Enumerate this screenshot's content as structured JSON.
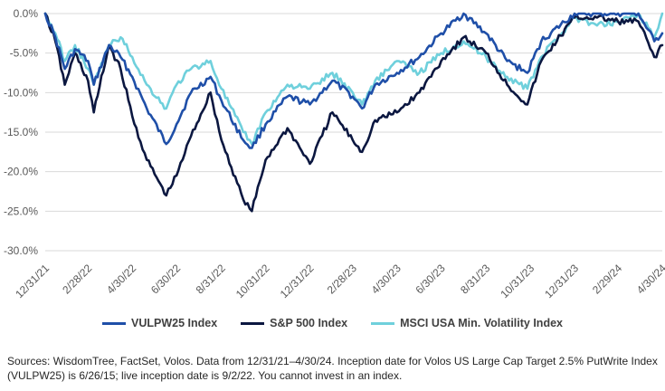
{
  "chart_data": {
    "type": "line",
    "ylim": [
      -30,
      0
    ],
    "y_ticks": [
      "0.0%",
      "-5.0%",
      "-10.0%",
      "-15.0%",
      "-20.0%",
      "-25.0%",
      "-30.0%"
    ],
    "x_ticks": [
      "12/31/21",
      "2/28/22",
      "4/30/22",
      "6/30/22",
      "8/31/22",
      "10/31/22",
      "12/31/22",
      "2/28/23",
      "4/30/23",
      "6/30/23",
      "8/31/23",
      "10/31/23",
      "12/31/23",
      "2/29/24",
      "4/30/24"
    ],
    "grid": "horizontal",
    "legend_position": "bottom",
    "series": [
      {
        "name": "VULPW25 Index",
        "color": "#1f4fa8",
        "points": [
          [
            "12/31/21",
            0
          ],
          [
            "1/14/22",
            -3
          ],
          [
            "1/27/22",
            -7
          ],
          [
            "2/10/22",
            -4.5
          ],
          [
            "2/28/22",
            -6
          ],
          [
            "3/8/22",
            -9
          ],
          [
            "3/29/22",
            -4
          ],
          [
            "4/14/22",
            -5.5
          ],
          [
            "4/30/22",
            -8
          ],
          [
            "5/20/22",
            -12
          ],
          [
            "6/16/22",
            -16.5
          ],
          [
            "6/30/22",
            -14
          ],
          [
            "7/20/22",
            -10
          ],
          [
            "8/16/22",
            -8
          ],
          [
            "8/31/22",
            -11
          ],
          [
            "9/30/22",
            -16
          ],
          [
            "10/12/22",
            -17
          ],
          [
            "10/31/22",
            -14
          ],
          [
            "11/30/22",
            -10.5
          ],
          [
            "12/31/22",
            -11.5
          ],
          [
            "1/31/23",
            -8.5
          ],
          [
            "2/28/23",
            -10.5
          ],
          [
            "3/13/23",
            -12
          ],
          [
            "3/31/23",
            -9
          ],
          [
            "4/30/23",
            -7.5
          ],
          [
            "5/31/23",
            -5.5
          ],
          [
            "6/30/23",
            -2.5
          ],
          [
            "7/31/23",
            0
          ],
          [
            "8/31/23",
            -2.5
          ],
          [
            "9/29/23",
            -6
          ],
          [
            "10/27/23",
            -7.5
          ],
          [
            "11/15/23",
            -3.5
          ],
          [
            "12/31/23",
            0
          ],
          [
            "1/31/24",
            0
          ],
          [
            "2/29/24",
            0
          ],
          [
            "3/28/24",
            0
          ],
          [
            "4/19/24",
            -3.5
          ],
          [
            "4/30/24",
            -2.5
          ]
        ]
      },
      {
        "name": "S&P 500 Index",
        "color": "#0b1740",
        "points": [
          [
            "12/31/21",
            0
          ],
          [
            "1/14/22",
            -3.5
          ],
          [
            "1/27/22",
            -9
          ],
          [
            "2/10/22",
            -5
          ],
          [
            "2/28/22",
            -8.5
          ],
          [
            "3/8/22",
            -12.5
          ],
          [
            "3/29/22",
            -4
          ],
          [
            "4/14/22",
            -7
          ],
          [
            "4/30/22",
            -13
          ],
          [
            "5/20/22",
            -18.5
          ],
          [
            "6/16/22",
            -23
          ],
          [
            "6/30/22",
            -20.5
          ],
          [
            "7/20/22",
            -15.5
          ],
          [
            "8/16/22",
            -10
          ],
          [
            "8/31/22",
            -16
          ],
          [
            "9/30/22",
            -23.5
          ],
          [
            "10/12/22",
            -25
          ],
          [
            "10/31/22",
            -18.5
          ],
          [
            "11/30/22",
            -14.5
          ],
          [
            "12/31/22",
            -19
          ],
          [
            "1/31/23",
            -12.5
          ],
          [
            "2/28/23",
            -16
          ],
          [
            "3/13/23",
            -17.5
          ],
          [
            "3/31/23",
            -13.5
          ],
          [
            "4/30/23",
            -12.5
          ],
          [
            "5/31/23",
            -10
          ],
          [
            "6/30/23",
            -6
          ],
          [
            "7/31/23",
            -3
          ],
          [
            "8/31/23",
            -5
          ],
          [
            "9/29/23",
            -9
          ],
          [
            "10/27/23",
            -11.5
          ],
          [
            "11/15/23",
            -6
          ],
          [
            "12/31/23",
            -0.5
          ],
          [
            "1/31/24",
            -0.5
          ],
          [
            "2/29/24",
            -1
          ],
          [
            "3/28/24",
            -1
          ],
          [
            "4/19/24",
            -5.5
          ],
          [
            "4/30/24",
            -4
          ]
        ]
      },
      {
        "name": "MSCI USA Min. Volatility Index",
        "color": "#6fd0dc",
        "points": [
          [
            "12/31/21",
            0
          ],
          [
            "1/14/22",
            -2.5
          ],
          [
            "1/27/22",
            -6
          ],
          [
            "2/10/22",
            -4
          ],
          [
            "2/28/22",
            -7
          ],
          [
            "3/8/22",
            -9
          ],
          [
            "3/29/22",
            -4
          ],
          [
            "4/14/22",
            -3
          ],
          [
            "4/30/22",
            -5.5
          ],
          [
            "5/20/22",
            -9
          ],
          [
            "6/16/22",
            -12
          ],
          [
            "6/30/22",
            -9
          ],
          [
            "7/20/22",
            -7
          ],
          [
            "8/16/22",
            -6
          ],
          [
            "8/31/22",
            -9.5
          ],
          [
            "9/30/22",
            -15
          ],
          [
            "10/12/22",
            -16.5
          ],
          [
            "10/31/22",
            -12.5
          ],
          [
            "11/30/22",
            -9
          ],
          [
            "12/31/22",
            -9.5
          ],
          [
            "1/31/23",
            -7.5
          ],
          [
            "2/28/23",
            -10
          ],
          [
            "3/13/23",
            -11.5
          ],
          [
            "3/31/23",
            -8.5
          ],
          [
            "4/30/23",
            -6
          ],
          [
            "5/31/23",
            -7.5
          ],
          [
            "6/30/23",
            -5
          ],
          [
            "7/31/23",
            -3.5
          ],
          [
            "8/31/23",
            -5.5
          ],
          [
            "9/29/23",
            -8
          ],
          [
            "10/27/23",
            -9.5
          ],
          [
            "11/15/23",
            -5.5
          ],
          [
            "12/31/23",
            -0.5
          ],
          [
            "1/31/24",
            -1.5
          ],
          [
            "2/29/24",
            -1
          ],
          [
            "3/28/24",
            0
          ],
          [
            "4/19/24",
            -3
          ],
          [
            "4/30/24",
            0
          ]
        ]
      }
    ]
  },
  "source_note": "Sources: WisdomTree, FactSet, Volos. Data from 12/31/21–4/30/24. Inception date for Volos US Large Cap Target 2.5% PutWrite Index (VULPW25) is 6/26/15; live inception date is 9/2/22. You cannot invest in an index."
}
